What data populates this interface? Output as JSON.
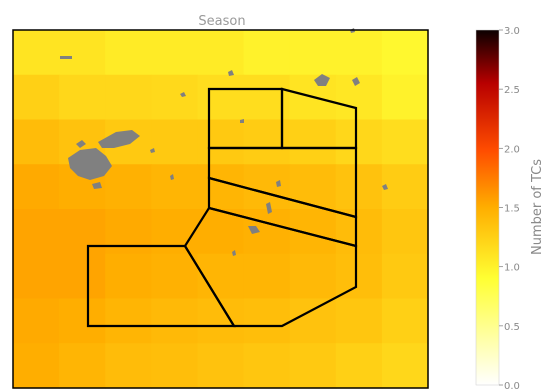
{
  "chart_data": {
    "type": "heatmap",
    "title": "Season",
    "colorbar": {
      "label": "Number of TCs",
      "vmin": 0.0,
      "vmax": 3.0,
      "ticks": [
        "0.0",
        "0.5",
        "1.0",
        "1.5",
        "2.0",
        "2.5",
        "3.0"
      ],
      "colormap": "hot_r"
    },
    "grid_values": [
      [
        1.1,
        1.1,
        1.05,
        1.05,
        1.05,
        1.0,
        1.0,
        1.0,
        0.95
      ],
      [
        1.25,
        1.2,
        1.2,
        1.18,
        1.15,
        1.15,
        1.1,
        1.08,
        1.0
      ],
      [
        1.4,
        1.35,
        1.3,
        1.3,
        1.3,
        1.28,
        1.25,
        1.2,
        1.15
      ],
      [
        1.52,
        1.5,
        1.48,
        1.45,
        1.45,
        1.42,
        1.4,
        1.35,
        1.28
      ],
      [
        1.55,
        1.55,
        1.52,
        1.5,
        1.5,
        1.48,
        1.45,
        1.4,
        1.32
      ],
      [
        1.55,
        1.55,
        1.5,
        1.48,
        1.45,
        1.45,
        1.42,
        1.38,
        1.3
      ],
      [
        1.52,
        1.5,
        1.45,
        1.42,
        1.4,
        1.38,
        1.35,
        1.32,
        1.25
      ],
      [
        1.5,
        1.45,
        1.4,
        1.38,
        1.35,
        1.32,
        1.3,
        1.25,
        1.2
      ]
    ],
    "land_color": "#808080",
    "region_outline_color": "#000000"
  }
}
